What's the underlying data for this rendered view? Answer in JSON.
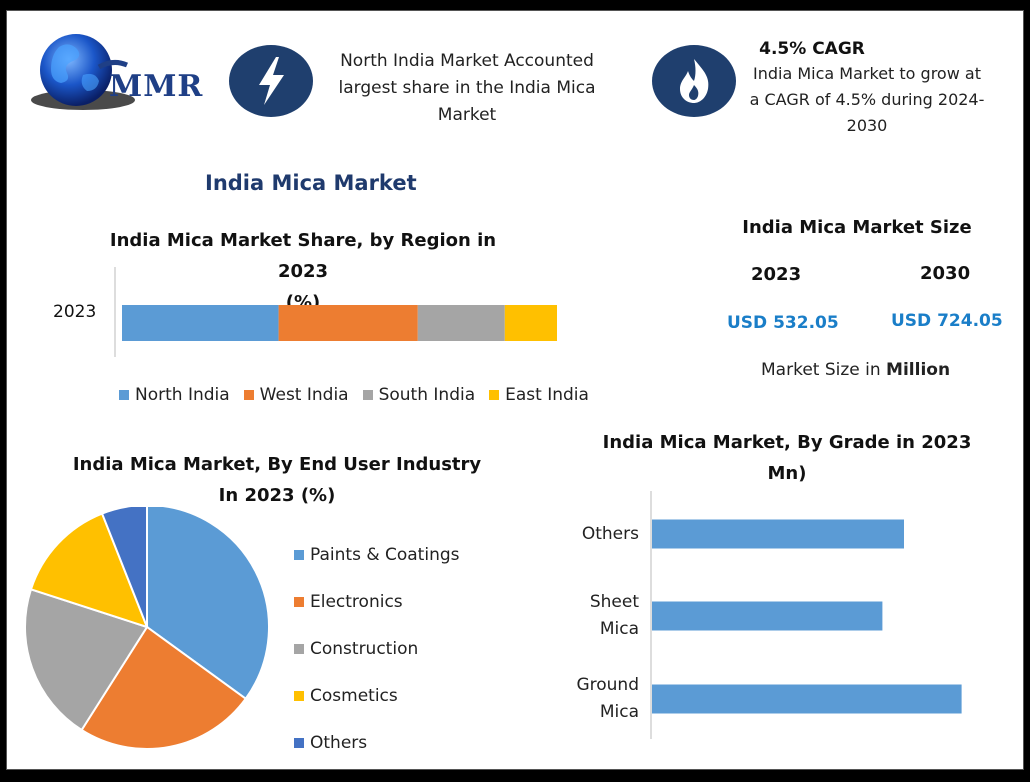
{
  "brand": {
    "name": "MMR"
  },
  "highlights": [
    {
      "icon": "lightning-icon",
      "text_lines": [
        "North India Market Accounted",
        "largest share in the India Mica",
        "Market"
      ]
    },
    {
      "icon": "flame-icon",
      "heading": "4.5% CAGR",
      "text_lines": [
        "India Mica Market to grow at",
        "a CAGR of 4.5% during 2024-",
        "2030"
      ]
    }
  ],
  "main_title": "India Mica Market",
  "market_size": {
    "title": "India Mica Market Size",
    "years": [
      "2023",
      "2030"
    ],
    "values": [
      "USD 532.05",
      "USD 724.05"
    ],
    "note_prefix": "Market Size in ",
    "note_bold": "Million"
  },
  "colors": {
    "blue": "#5b9bd5",
    "orange": "#ed7d31",
    "gray": "#a5a5a5",
    "yellow": "#ffc000",
    "darkblue": "#4472c4",
    "navy": "#1f3f6e",
    "accent": "#1a7ec8"
  },
  "chart_data": [
    {
      "type": "bar",
      "orientation": "horizontal-stacked",
      "title_lines": [
        "India Mica Market Share, by Region in 2023",
        "(%)"
      ],
      "categories": [
        "2023"
      ],
      "series": [
        {
          "name": "North India",
          "values": [
            36
          ]
        },
        {
          "name": "West India",
          "values": [
            32
          ]
        },
        {
          "name": "South India",
          "values": [
            20
          ]
        },
        {
          "name": "East India",
          "values": [
            12
          ]
        }
      ],
      "legend": "bottom"
    },
    {
      "type": "pie",
      "title_lines": [
        "India Mica Market, By End User Industry",
        "In 2023 (%)"
      ],
      "labels": [
        "Paints & Coatings",
        "Electronics",
        "Construction",
        "Cosmetics",
        "Others"
      ],
      "values": [
        35,
        24,
        21,
        14,
        6
      ],
      "legend": "right"
    },
    {
      "type": "bar",
      "orientation": "horizontal",
      "title_lines": [
        "India Mica Market, By Grade in 2023",
        "Mn)"
      ],
      "categories": [
        [
          "Others"
        ],
        [
          "Sheet",
          "Mica"
        ],
        [
          "Ground",
          "Mica"
        ]
      ],
      "values": [
        70,
        64,
        86
      ]
    }
  ]
}
